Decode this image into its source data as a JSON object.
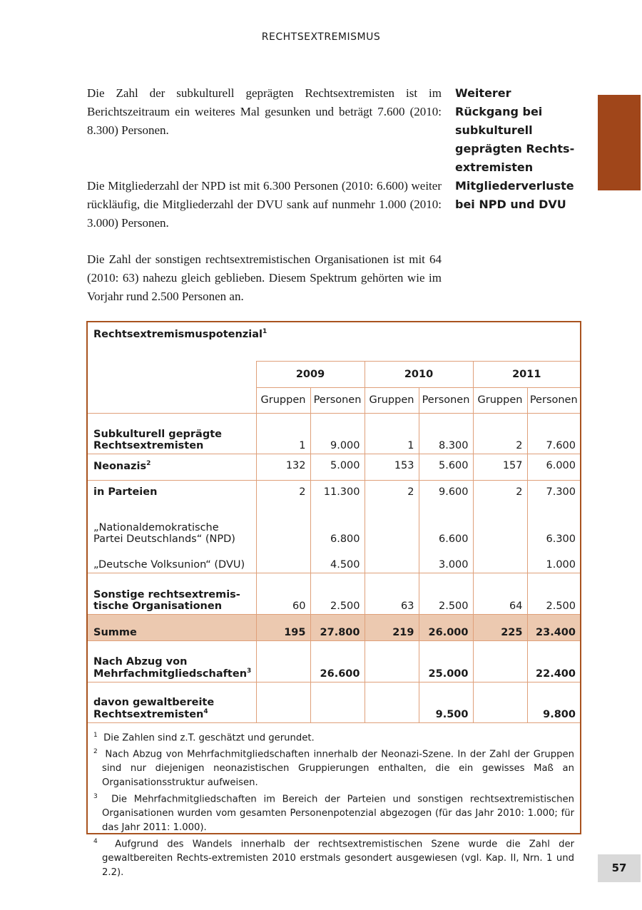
{
  "header": "RECHTSEXTREMISMUS",
  "paragraphs": [
    "Die Zahl der subkulturell geprägten Rechtsextremisten ist im Berichtszeitraum ein weiteres Mal gesunken und beträgt 7.600 (2010: 8.300) Personen.",
    "Die Mitgliederzahl der NPD ist mit 6.300 Personen (2010: 6.600) weiter rückläufig, die Mitgliederzahl der DVU sank auf nunmehr 1.000 (2010: 3.000) Personen.",
    "Die Zahl der sonstigen rechtsextremistischen Organisationen ist mit 64 (2010: 63) nahezu gleich geblieben. Diesem Spektrum gehörten wie im Vorjahr rund 2.500 Personen an."
  ],
  "margin_notes": [
    "Weiterer Rückgang bei subkulturell geprägten Rechts-extremisten",
    "Mitgliederverluste bei NPD und DVU"
  ],
  "table": {
    "title": "Rechtsextremismuspotenzial",
    "title_sup": "1",
    "years": [
      "2009",
      "2010",
      "2011"
    ],
    "subheaders": [
      "Gruppen",
      "Personen",
      "Gruppen",
      "Personen",
      "Gruppen",
      "Personen"
    ],
    "rows": [
      {
        "label": "Subkulturell geprägte Rechtsextremisten",
        "sup": "",
        "values": [
          "1",
          "9.000",
          "1",
          "8.300",
          "2",
          "7.600"
        ]
      },
      {
        "label": "Neonazis",
        "sup": "2",
        "values": [
          "132",
          "5.000",
          "153",
          "5.600",
          "157",
          "6.000"
        ]
      },
      {
        "label": "in Parteien",
        "sup": "",
        "values": [
          "2",
          "11.300",
          "2",
          "9.600",
          "2",
          "7.300"
        ]
      },
      {
        "label": "„Nationaldemokratische Partei Deutschlands“ (NPD)",
        "sup": "",
        "values": [
          "",
          "6.800",
          "",
          "6.600",
          "",
          "6.300"
        ]
      },
      {
        "label": "„Deutsche Volksunion“ (DVU)",
        "sup": "",
        "values": [
          "",
          "4.500",
          "",
          "3.000",
          "",
          "1.000"
        ]
      },
      {
        "label": "Sonstige rechtsextremis-tische Organisationen",
        "sup": "",
        "values": [
          "60",
          "2.500",
          "63",
          "2.500",
          "64",
          "2.500"
        ]
      },
      {
        "label": "Summe",
        "sup": "",
        "values": [
          "195",
          "27.800",
          "219",
          "26.000",
          "225",
          "23.400"
        ]
      },
      {
        "label": "Nach Abzug von Mehrfachmitgliedschaften",
        "sup": "3",
        "values": [
          "",
          "26.600",
          "",
          "25.000",
          "",
          "22.400"
        ]
      },
      {
        "label": "davon gewaltbereite Rechtsextremisten",
        "sup": "4",
        "values": [
          "",
          "",
          "",
          "9.500",
          "",
          "9.800"
        ]
      }
    ],
    "footnotes": [
      {
        "n": "1",
        "text": "Die Zahlen sind z.T. geschätzt und gerundet."
      },
      {
        "n": "2",
        "text": "Nach Abzug von Mehrfachmitgliedschaften innerhalb der Neonazi-Szene. In der Zahl der Gruppen sind nur diejenigen neonazistischen Gruppierungen enthalten, die ein gewisses Maß an Organisationsstruktur aufweisen."
      },
      {
        "n": "3",
        "text": "Die Mehrfachmitgliedschaften im Bereich der Parteien und sonstigen rechtsextremistischen Organisationen wurden vom gesamten Personenpotenzial abgezogen (für das Jahr 2010: 1.000; für das Jahr 2011: 1.000)."
      },
      {
        "n": "4",
        "text": "Aufgrund des Wandels innerhalb der rechtsextremistischen Szene wurde die Zahl der gewaltbereiten Rechts-extremisten 2010 erstmals gesondert ausgewiesen (vgl. Kap. II, Nrn. 1 und 2.2)."
      }
    ]
  },
  "page_number": "57",
  "colors": {
    "accent": "#a0461a",
    "table_border": "#a9531f",
    "sum_row": "#ecc9b0"
  }
}
